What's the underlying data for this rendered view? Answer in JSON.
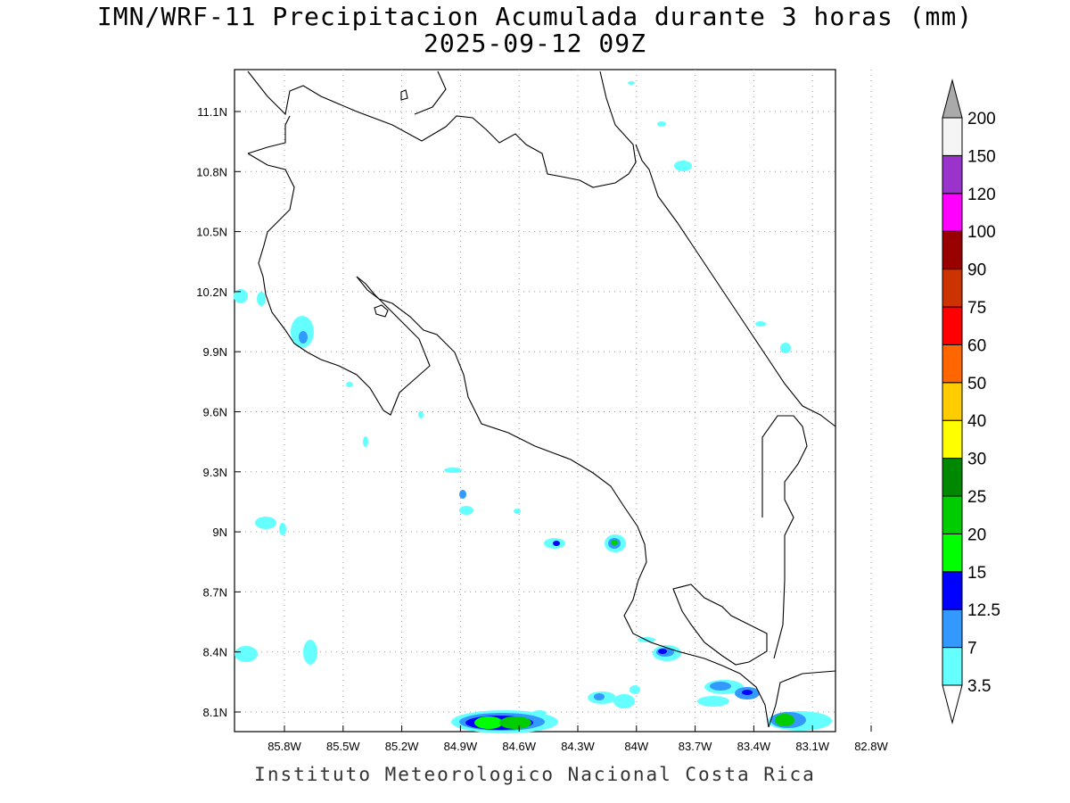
{
  "title": {
    "line1": "IMN/WRF-11 Precipitacion Acumulada durante 3 horas (mm)",
    "line2": "2025-09-12 09Z"
  },
  "footer": "Instituto Meteorologico Nacional Costa Rica",
  "map": {
    "lon_range": [
      -86.1,
      -83.1
    ],
    "lat_range": [
      8.0,
      11.3
    ],
    "lon_ticks": [
      {
        "value": -85.8,
        "label": "85.8W"
      },
      {
        "value": -85.5,
        "label": "85.5W"
      },
      {
        "value": -85.2,
        "label": "85.2W"
      },
      {
        "value": -84.9,
        "label": "84.9W"
      },
      {
        "value": -84.6,
        "label": "84.6W"
      },
      {
        "value": -84.3,
        "label": "84.3W"
      },
      {
        "value": -84.0,
        "label": "84W"
      },
      {
        "value": -83.7,
        "label": "83.7W"
      },
      {
        "value": -83.4,
        "label": "83.4W"
      },
      {
        "value": -83.1,
        "label": "83.1W"
      },
      {
        "value": -82.8,
        "label": "82.8W"
      }
    ],
    "lat_ticks": [
      {
        "value": 8.1,
        "label": "8.1N"
      },
      {
        "value": 8.4,
        "label": "8.4N"
      },
      {
        "value": 8.7,
        "label": "8.7N"
      },
      {
        "value": 9.0,
        "label": "9N"
      },
      {
        "value": 9.3,
        "label": "9.3N"
      },
      {
        "value": 9.6,
        "label": "9.6N"
      },
      {
        "value": 9.9,
        "label": "9.9N"
      },
      {
        "value": 10.2,
        "label": "10.2N"
      },
      {
        "value": 10.5,
        "label": "10.5N"
      },
      {
        "value": 10.8,
        "label": "10.8N"
      },
      {
        "value": 11.1,
        "label": "11.1N"
      }
    ],
    "grid": true
  },
  "colorbar": {
    "labels": [
      "3.5",
      "7",
      "12.5",
      "15",
      "20",
      "25",
      "30",
      "40",
      "50",
      "60",
      "75",
      "90",
      "100",
      "120",
      "150",
      "200"
    ],
    "colors": [
      "#66ffff",
      "#3399ff",
      "#0000ff",
      "#00ff00",
      "#00cc00",
      "#008800",
      "#ffff00",
      "#ffcc00",
      "#ff6600",
      "#ff0000",
      "#cc3300",
      "#990000",
      "#ff00ff",
      "#9933cc",
      "#f5f5f5",
      "#aaaaaa"
    ]
  }
}
